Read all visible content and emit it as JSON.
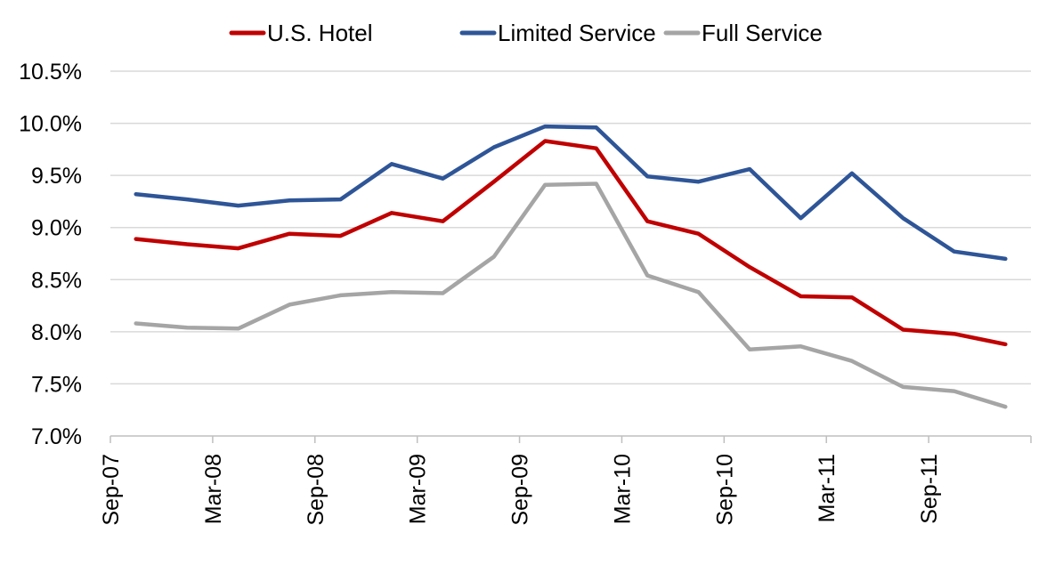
{
  "chart_data": {
    "type": "line",
    "title": "",
    "xlabel": "",
    "ylabel": "",
    "categories": [
      "Sep-07",
      "Dec-07",
      "Mar-08",
      "Jun-08",
      "Sep-08",
      "Dec-08",
      "Mar-09",
      "Jun-09",
      "Sep-09",
      "Dec-09",
      "Mar-10",
      "Jun-10",
      "Sep-10",
      "Dec-10",
      "Mar-11",
      "Jun-11",
      "Sep-11",
      "Dec-11"
    ],
    "x_tick_labels": [
      "Sep-07",
      "Mar-08",
      "Sep-08",
      "Mar-09",
      "Sep-09",
      "Mar-10",
      "Sep-10",
      "Mar-11",
      "Sep-11"
    ],
    "ylim": [
      7.0,
      10.5
    ],
    "y_tick_labels": [
      "7.0%",
      "7.5%",
      "8.0%",
      "8.5%",
      "9.0%",
      "9.5%",
      "10.0%",
      "10.5%"
    ],
    "grid": true,
    "legend_position": "top",
    "series": [
      {
        "name": "U.S. Hotel",
        "color": "#c00000",
        "values": [
          8.89,
          8.84,
          8.8,
          8.94,
          8.92,
          9.14,
          9.06,
          9.44,
          9.83,
          9.76,
          9.06,
          8.94,
          8.62,
          8.34,
          8.33,
          8.02,
          7.98,
          7.88
        ]
      },
      {
        "name": "Limited Service",
        "color": "#2e5597",
        "values": [
          9.32,
          9.27,
          9.21,
          9.26,
          9.27,
          9.61,
          9.47,
          9.77,
          9.97,
          9.96,
          9.49,
          9.44,
          9.56,
          9.09,
          9.52,
          9.09,
          8.77,
          8.7
        ]
      },
      {
        "name": "Full Service",
        "color": "#a5a5a5",
        "values": [
          8.08,
          8.04,
          8.03,
          8.26,
          8.35,
          8.38,
          8.37,
          8.72,
          9.41,
          9.42,
          8.54,
          8.38,
          7.83,
          7.86,
          7.72,
          7.47,
          7.43,
          7.28
        ]
      }
    ]
  }
}
